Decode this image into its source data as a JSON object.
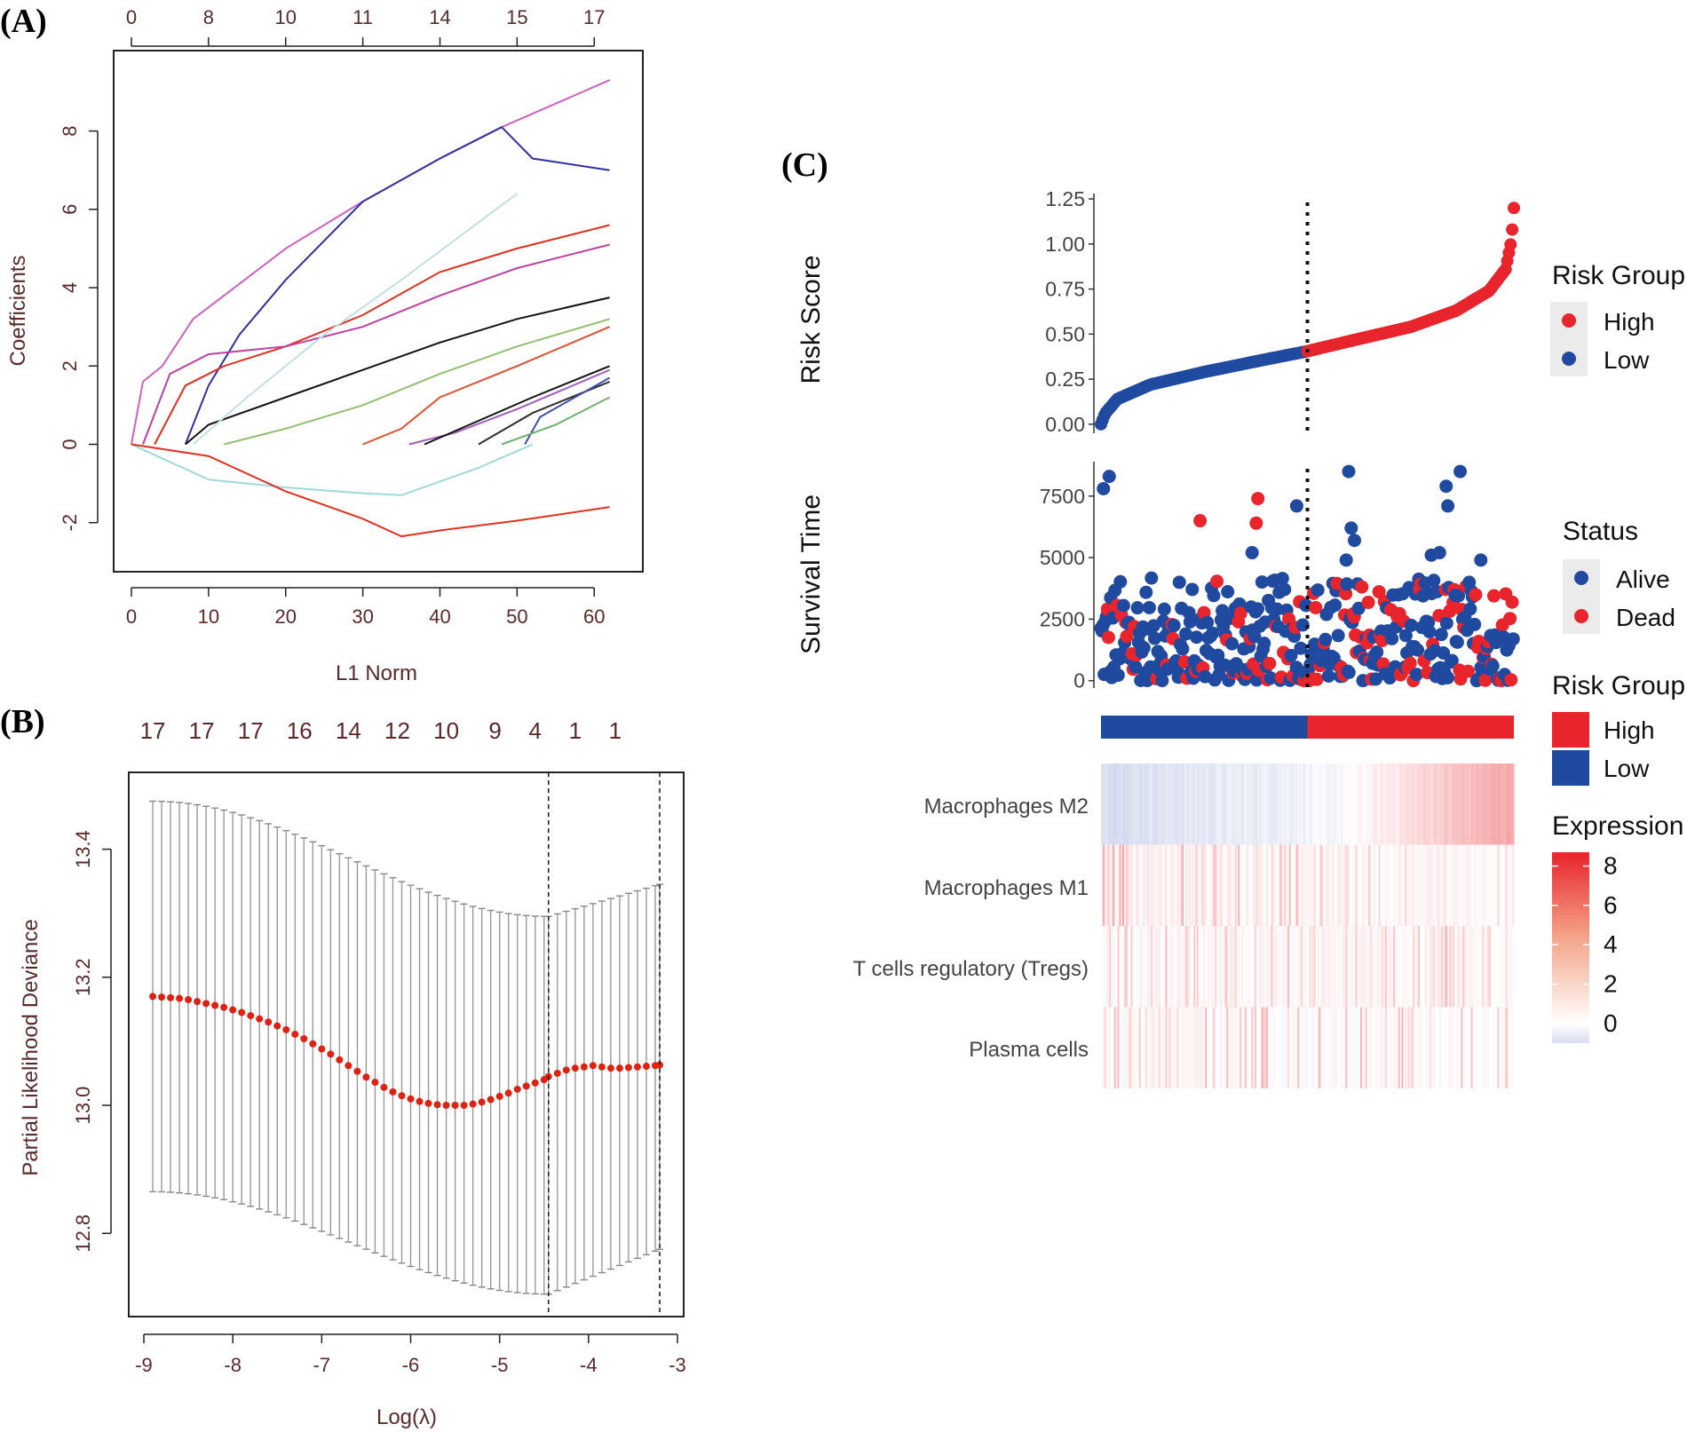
{
  "chart_data": [
    {
      "panel": "(A)",
      "type": "line",
      "xlabel": "L1 Norm",
      "ylabel": "Coefficients",
      "xlim": [
        0,
        64
      ],
      "ylim": [
        -2.8,
        9.6
      ],
      "xticks": [
        0,
        10,
        20,
        30,
        40,
        50,
        60
      ],
      "yticks": [
        -2,
        0,
        2,
        4,
        6,
        8
      ],
      "top_axis": {
        "positions": [
          0,
          10,
          20,
          30,
          40,
          50,
          60
        ],
        "labels": [
          "0",
          "8",
          "10",
          "11",
          "14",
          "15",
          "17"
        ]
      },
      "series": [
        {
          "name": "path-1",
          "color": "#d060c0",
          "x": [
            0,
            1.5,
            4,
            8,
            12,
            20,
            30,
            40,
            48,
            55,
            62
          ],
          "y": [
            0,
            1.6,
            2.0,
            3.2,
            3.8,
            5.0,
            6.2,
            7.3,
            8.1,
            8.7,
            9.3
          ]
        },
        {
          "name": "path-2",
          "color": "#3030a0",
          "x": [
            7,
            10,
            14,
            20,
            30,
            40,
            48,
            52,
            62
          ],
          "y": [
            0,
            1.5,
            2.8,
            4.2,
            6.2,
            7.3,
            8.1,
            7.3,
            7.0
          ]
        },
        {
          "name": "path-3",
          "color": "#e03020",
          "x": [
            3,
            7,
            12,
            20,
            30,
            40,
            50,
            62
          ],
          "y": [
            0,
            1.5,
            2.0,
            2.5,
            3.3,
            4.4,
            5.0,
            5.6
          ]
        },
        {
          "name": "path-4",
          "color": "#c040a0",
          "x": [
            1.5,
            5,
            10,
            20,
            30,
            40,
            50,
            62
          ],
          "y": [
            0,
            1.8,
            2.3,
            2.5,
            3.0,
            3.8,
            4.5,
            5.1
          ]
        },
        {
          "name": "path-5",
          "color": "#111111",
          "x": [
            7,
            10,
            20,
            30,
            40,
            50,
            62
          ],
          "y": [
            0,
            0.5,
            1.2,
            1.9,
            2.6,
            3.2,
            3.75
          ]
        },
        {
          "name": "path-6",
          "color": "#90c070",
          "x": [
            12,
            20,
            30,
            40,
            50,
            62
          ],
          "y": [
            0,
            0.4,
            1.0,
            1.8,
            2.5,
            3.2
          ]
        },
        {
          "name": "path-7",
          "color": "#e05030",
          "x": [
            30,
            35,
            40,
            50,
            62
          ],
          "y": [
            0,
            0.4,
            1.2,
            2.0,
            3.0
          ]
        },
        {
          "name": "path-8",
          "color": "#a060c0",
          "x": [
            36,
            42,
            50,
            62
          ],
          "y": [
            0,
            0.3,
            0.9,
            1.9
          ]
        },
        {
          "name": "path-9",
          "color": "#111111",
          "x": [
            38,
            45,
            52,
            62
          ],
          "y": [
            0,
            0.6,
            1.2,
            2.0
          ]
        },
        {
          "name": "path-10",
          "color": "#303030",
          "x": [
            45,
            52,
            62
          ],
          "y": [
            0,
            0.8,
            1.6
          ]
        },
        {
          "name": "path-11",
          "color": "#4050b0",
          "x": [
            51,
            53,
            62
          ],
          "y": [
            0,
            0.7,
            1.7
          ]
        },
        {
          "name": "path-12",
          "color": "#70b070",
          "x": [
            48,
            55,
            62
          ],
          "y": [
            0,
            0.5,
            1.2
          ]
        },
        {
          "name": "path-13",
          "color": "#c0e0e8",
          "x": [
            8,
            15,
            25,
            35,
            50
          ],
          "y": [
            0,
            1.2,
            2.8,
            4.2,
            6.4
          ]
        },
        {
          "name": "path-14",
          "color": "#a0d8dc",
          "x": [
            0,
            10,
            20,
            30,
            35,
            45,
            52
          ],
          "y": [
            0,
            -0.9,
            -1.1,
            -1.25,
            -1.3,
            -0.6,
            0
          ]
        },
        {
          "name": "path-15",
          "color": "#e03020",
          "x": [
            0,
            10,
            20,
            30,
            35,
            40,
            50,
            62
          ],
          "y": [
            0,
            -0.3,
            -1.2,
            -1.9,
            -2.35,
            -2.2,
            -1.95,
            -1.6
          ]
        }
      ]
    },
    {
      "panel": "(B)",
      "type": "scatter",
      "xlabel": "Log(λ)",
      "ylabel": "Partial Likelihood Deviance",
      "xlim": [
        -9.05,
        -3.05
      ],
      "ylim": [
        12.67,
        13.52
      ],
      "xticks": [
        -9,
        -8,
        -7,
        -6,
        -5,
        -4,
        -3
      ],
      "yticks": [
        12.8,
        13.0,
        13.2,
        13.4
      ],
      "top_axis": {
        "positions": [
          -8.9,
          -8.35,
          -7.8,
          -7.25,
          -6.7,
          -6.15,
          -5.6,
          -5.05,
          -4.6,
          -4.15,
          -3.7
        ],
        "labels": [
          "17",
          "17",
          "17",
          "16",
          "14",
          "12",
          "10",
          "9",
          "4",
          "1",
          "1"
        ]
      },
      "vlines": [
        -4.45,
        -3.2
      ],
      "x": [
        -8.9,
        -8.8,
        -8.7,
        -8.6,
        -8.5,
        -8.4,
        -8.3,
        -8.2,
        -8.1,
        -8.0,
        -7.9,
        -7.8,
        -7.7,
        -7.6,
        -7.5,
        -7.4,
        -7.3,
        -7.2,
        -7.1,
        -7.0,
        -6.9,
        -6.8,
        -6.7,
        -6.6,
        -6.5,
        -6.4,
        -6.3,
        -6.2,
        -6.1,
        -6.0,
        -5.9,
        -5.8,
        -5.7,
        -5.6,
        -5.5,
        -5.4,
        -5.3,
        -5.2,
        -5.1,
        -5.0,
        -4.9,
        -4.8,
        -4.7,
        -4.6,
        -4.5,
        -4.45,
        -4.35,
        -4.25,
        -4.15,
        -4.05,
        -3.95,
        -3.85,
        -3.75,
        -3.65,
        -3.55,
        -3.45,
        -3.35,
        -3.25,
        -3.2
      ],
      "mean": [
        13.17,
        13.169,
        13.168,
        13.167,
        13.165,
        13.162,
        13.159,
        13.156,
        13.153,
        13.149,
        13.145,
        13.14,
        13.135,
        13.13,
        13.124,
        13.118,
        13.111,
        13.104,
        13.096,
        13.088,
        13.08,
        13.071,
        13.062,
        13.053,
        13.044,
        13.036,
        13.028,
        13.021,
        13.015,
        13.01,
        13.006,
        13.003,
        13.001,
        13.0,
        13.0,
        13.0,
        13.002,
        13.005,
        13.009,
        13.014,
        13.019,
        13.025,
        13.03,
        13.035,
        13.04,
        13.045,
        13.05,
        13.055,
        13.058,
        13.06,
        13.062,
        13.06,
        13.058,
        13.058,
        13.059,
        13.06,
        13.061,
        13.062,
        13.063
      ],
      "band": {
        "upper_start": 13.475,
        "upper_at_min": 13.295,
        "upper_end": 13.345,
        "lower_start": 12.865,
        "lower_at_min": 12.705,
        "lower_end": 12.775
      }
    },
    {
      "panel": "(C)",
      "type": "scatter",
      "subplots": [
        {
          "name": "risk-score",
          "ylabel": "Risk Score",
          "ylim": [
            -0.05,
            1.28
          ],
          "yticks": [
            0.0,
            0.25,
            0.5,
            0.75,
            1.0,
            1.25
          ],
          "ytick_labels": [
            "0.00",
            "0.25",
            "0.50",
            "0.75",
            "1.00",
            "1.25"
          ],
          "n_patients": 500,
          "cutoff_rank": 250,
          "cutoff_value": 0.405,
          "curve_ranks": [
            0,
            5,
            20,
            60,
            125,
            200,
            250,
            300,
            375,
            430,
            470,
            490,
            497,
            500
          ],
          "curve_values": [
            0.0,
            0.06,
            0.14,
            0.22,
            0.29,
            0.36,
            0.405,
            0.46,
            0.54,
            0.63,
            0.74,
            0.86,
            1.02,
            1.2
          ]
        },
        {
          "name": "survival-time",
          "ylabel": "Survival Time",
          "ylim": [
            -300,
            8900
          ],
          "yticks": [
            0,
            2500,
            5000,
            7500
          ],
          "ytick_labels": [
            "0",
            "2500",
            "5000",
            "7500"
          ],
          "outliers": [
            {
              "rank": 3,
              "time": 7800,
              "status": "Alive"
            },
            {
              "rank": 10,
              "time": 8300,
              "status": "Alive"
            },
            {
              "rank": 120,
              "time": 6500,
              "status": "Dead"
            },
            {
              "rank": 190,
              "time": 7400,
              "status": "Dead"
            },
            {
              "rank": 188,
              "time": 6400,
              "status": "Dead"
            },
            {
              "rank": 183,
              "time": 5200,
              "status": "Alive"
            },
            {
              "rank": 237,
              "time": 7100,
              "status": "Alive"
            },
            {
              "rank": 300,
              "time": 8500,
              "status": "Alive"
            },
            {
              "rank": 297,
              "time": 4900,
              "status": "Alive"
            },
            {
              "rank": 303,
              "time": 6200,
              "status": "Alive"
            },
            {
              "rank": 307,
              "time": 5700,
              "status": "Alive"
            },
            {
              "rank": 418,
              "time": 7900,
              "status": "Alive"
            },
            {
              "rank": 420,
              "time": 7100,
              "status": "Alive"
            },
            {
              "rank": 435,
              "time": 8500,
              "status": "Alive"
            },
            {
              "rank": 400,
              "time": 5100,
              "status": "Alive"
            },
            {
              "rank": 410,
              "time": 5200,
              "status": "Alive"
            },
            {
              "rank": 460,
              "time": 4900,
              "status": "Alive"
            }
          ]
        }
      ],
      "heatmap_rows": [
        "Macrophages M2",
        "Macrophages M1",
        "T cells regulatory (Tregs)",
        "Plasma cells"
      ],
      "legends": {
        "risk_group": {
          "title": "Risk Group",
          "items": [
            {
              "label": "High",
              "color": "#e8242c"
            },
            {
              "label": "Low",
              "color": "#1f4aa0"
            }
          ]
        },
        "status": {
          "title": "Status",
          "items": [
            {
              "label": "Alive",
              "color": "#1f4aa0"
            },
            {
              "label": "Dead",
              "color": "#e8242c"
            }
          ]
        },
        "risk_group_bar": {
          "title": "Risk Group",
          "items": [
            {
              "label": "High",
              "color": "#e8242c"
            },
            {
              "label": "Low",
              "color": "#1f4aa0"
            }
          ]
        },
        "expression": {
          "title": "Expression",
          "ticks": [
            "8",
            "6",
            "4",
            "2",
            "0"
          ],
          "min": -1,
          "max": 8.7
        }
      }
    }
  ],
  "panel_labels": {
    "a": "(A)",
    "b": "(B)",
    "c": "(C)"
  },
  "colors": {
    "high": "#e8242c",
    "low": "#1f4aa0",
    "ci_red": "#e02010",
    "grey": "#888888"
  }
}
